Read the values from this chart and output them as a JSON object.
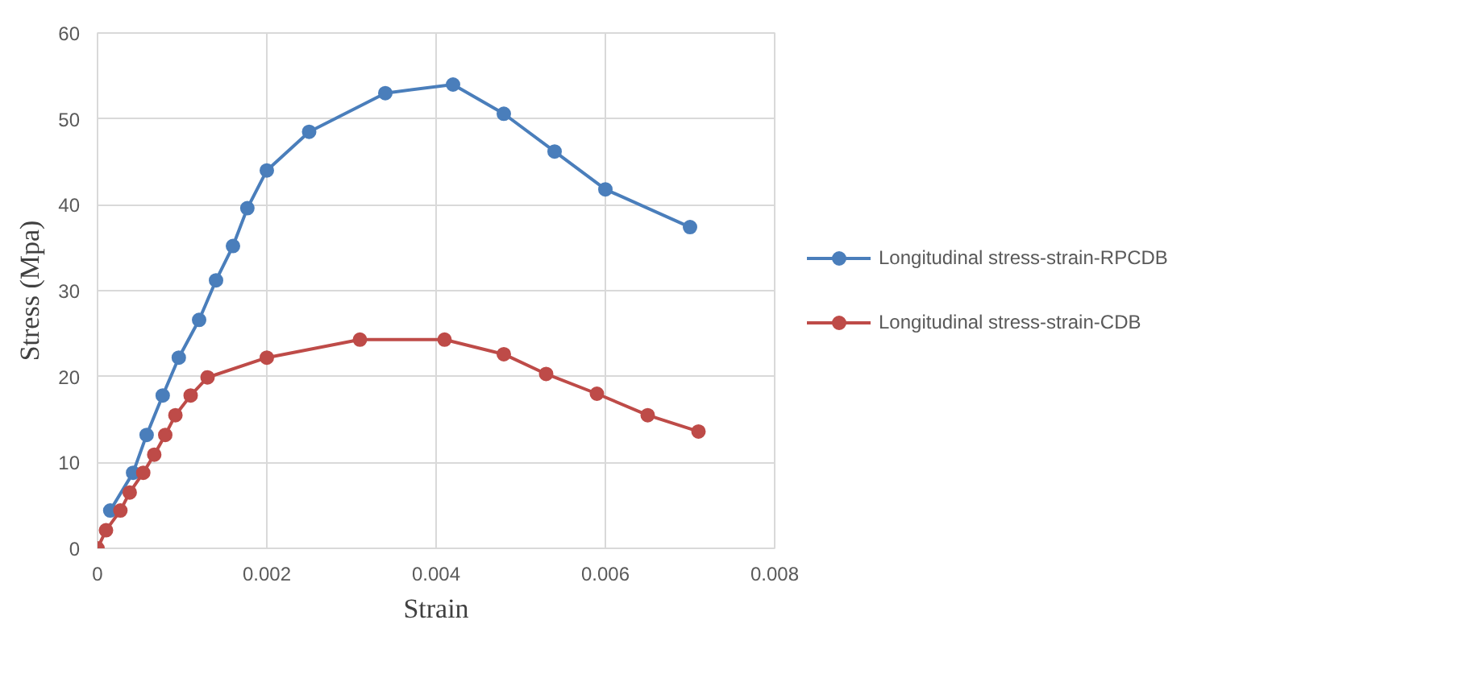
{
  "chart_data": {
    "type": "line",
    "xlabel": "Strain",
    "ylabel": "Stress (Mpa)",
    "xlim": [
      0,
      0.008
    ],
    "xticks": [
      0,
      0.002,
      0.004,
      0.006,
      0.008
    ],
    "ylim": [
      0,
      60
    ],
    "yticks": [
      0,
      10,
      20,
      30,
      40,
      50,
      60
    ],
    "grid": true,
    "legend": "right",
    "marker": "circle",
    "line_style": "solid",
    "series": [
      {
        "name": "Longitudinal stress-strain-RPCDB",
        "color": "#4a7ebb",
        "x": [
          0.00015,
          0.00042,
          0.00058,
          0.00077,
          0.00096,
          0.0012,
          0.0014,
          0.0016,
          0.00177,
          0.002,
          0.0025,
          0.0034,
          0.0042,
          0.0048,
          0.0054,
          0.006,
          0.007
        ],
        "values": [
          4.4,
          8.8,
          13.2,
          17.8,
          22.2,
          26.6,
          31.2,
          35.2,
          39.6,
          44,
          48.5,
          53,
          54,
          50.6,
          46.2,
          41.8,
          37.4
        ]
      },
      {
        "name": "Longitudinal stress-strain-CDB",
        "color": "#be4b48",
        "x": [
          0,
          0.0001,
          0.00027,
          0.00038,
          0.00054,
          0.00067,
          0.0008,
          0.00092,
          0.0011,
          0.0013,
          0.002,
          0.0031,
          0.0041,
          0.0048,
          0.0053,
          0.0059,
          0.0065,
          0.0071
        ],
        "values": [
          0,
          2.1,
          4.4,
          6.5,
          8.8,
          10.9,
          13.2,
          15.5,
          17.8,
          19.9,
          22.2,
          24.3,
          24.3,
          22.6,
          20.3,
          18,
          15.5,
          13.6
        ]
      }
    ]
  }
}
